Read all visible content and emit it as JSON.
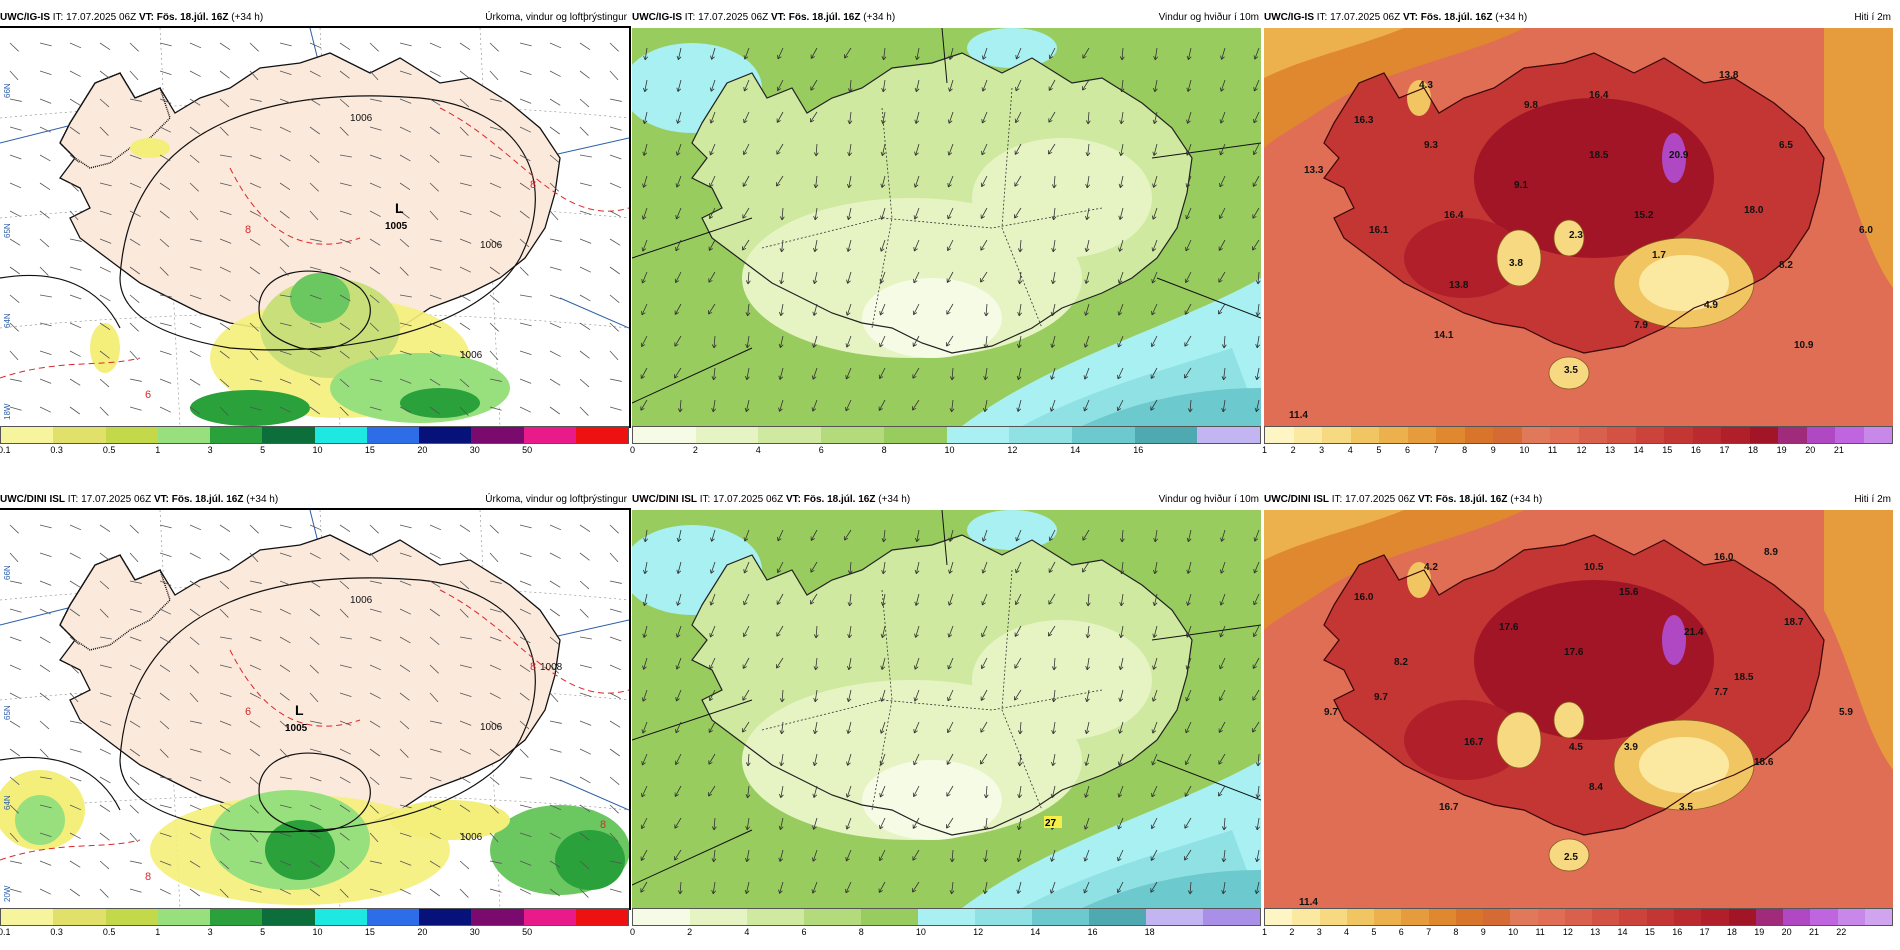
{
  "rows": [
    {
      "model": "UWC/IG-IS",
      "it_label": "IT:",
      "it": "17.07.2025 06Z",
      "vt_label": "VT:",
      "vt": "Fös. 18.júl. 16Z",
      "lead": "(+34 h)",
      "panels": [
        {
          "kind": "precip",
          "title": "Úrkoma, vindur og loftþrýstingur",
          "low_label": "L",
          "low_value": "1005",
          "isobars": [
            "1006",
            "1006",
            "1006"
          ],
          "temps": [
            "6",
            "8",
            "8"
          ],
          "lat_labels": [
            "66N",
            "65N",
            "64N",
            "18W"
          ],
          "legend": {
            "labels": [
              "0.1",
              "0.3",
              "0.5",
              "1",
              "3",
              "5",
              "10",
              "15",
              "20",
              "30",
              "50"
            ],
            "colors": [
              "#f6f49c",
              "#e0e06a",
              "#c4d94a",
              "#98e07e",
              "#2aa13a",
              "#0b6e3b",
              "#1ee8e2",
              "#2d6de8",
              "#06127a",
              "#7a0a6e",
              "#e91b8a",
              "#ee1111"
            ]
          }
        },
        {
          "kind": "wind",
          "title": "Vindur og hviður í 10m",
          "legend": {
            "labels": [
              "0",
              "2",
              "4",
              "6",
              "8",
              "10",
              "12",
              "14",
              "16"
            ],
            "colors": [
              "#f6fbe6",
              "#e6f4c4",
              "#cfe9a0",
              "#b3db7c",
              "#98cc5e",
              "#a8f0f2",
              "#8fe1e4",
              "#6cc9cd",
              "#4eaab0",
              "#c3b4f2"
            ]
          }
        },
        {
          "kind": "temp",
          "title": "Hiti í 2m",
          "values": [
            "4.3",
            "16.3",
            "9.3",
            "13.3",
            "9.8",
            "16.4",
            "13.8",
            "6.5",
            "18.5",
            "20.9",
            "9.1",
            "16.4",
            "16.1",
            "15.2",
            "18.0",
            "6.0",
            "2.3",
            "3.8",
            "1.7",
            "8.2",
            "13.8",
            "4.9",
            "7.9",
            "14.1",
            "10.9",
            "3.5",
            "11.4"
          ],
          "legend": {
            "labels": [
              "1",
              "2",
              "3",
              "4",
              "5",
              "6",
              "7",
              "8",
              "9",
              "10",
              "11",
              "12",
              "13",
              "14",
              "15",
              "16",
              "17",
              "18",
              "19",
              "20",
              "21"
            ],
            "colors": [
              "#fdf6c4",
              "#fbe9a2",
              "#f7d982",
              "#f2c563",
              "#ecb14d",
              "#e69c3c",
              "#e08830",
              "#d9752a",
              "#d56a34",
              "#e0795a",
              "#df6e55",
              "#d9604c",
              "#d35244",
              "#cc433c",
              "#c43634",
              "#bb2a2e",
              "#b01f2a",
              "#a11526",
              "#a02b7a",
              "#b048c4",
              "#c065e0",
              "#c788ea"
            ]
          }
        }
      ]
    },
    {
      "model": "UWC/DINI ISL",
      "it_label": "IT:",
      "it": "17.07.2025 06Z",
      "vt_label": "VT:",
      "vt": "Fös. 18.júl. 16Z",
      "lead": "(+34 h)",
      "panels": [
        {
          "kind": "precip",
          "title": "Úrkoma, vindur og loftþrýstingur",
          "low_label": "L",
          "low_value": "1005",
          "isobars": [
            "1006",
            "1006",
            "1006",
            "1008"
          ],
          "temps": [
            "8",
            "8",
            "6",
            "8"
          ],
          "lat_labels": [
            "66N",
            "65N",
            "64N",
            "20W"
          ],
          "legend": {
            "labels": [
              "0.1",
              "0.3",
              "0.5",
              "1",
              "3",
              "5",
              "10",
              "15",
              "20",
              "30",
              "50"
            ],
            "colors": [
              "#f6f49c",
              "#e0e06a",
              "#c4d94a",
              "#98e07e",
              "#2aa13a",
              "#0b6e3b",
              "#1ee8e2",
              "#2d6de8",
              "#06127a",
              "#7a0a6e",
              "#e91b8a",
              "#ee1111"
            ]
          }
        },
        {
          "kind": "wind",
          "title": "Vindur og hviður í 10m",
          "gust": "27",
          "legend": {
            "labels": [
              "0",
              "2",
              "4",
              "6",
              "8",
              "10",
              "12",
              "14",
              "16",
              "18"
            ],
            "colors": [
              "#f6fbe6",
              "#e6f4c4",
              "#cfe9a0",
              "#b3db7c",
              "#98cc5e",
              "#a8f0f2",
              "#8fe1e4",
              "#6cc9cd",
              "#4eaab0",
              "#c3b4f2",
              "#a98fe8"
            ]
          }
        },
        {
          "kind": "temp",
          "title": "Hiti í 2m",
          "values": [
            "4.2",
            "10.5",
            "16.0",
            "8.9",
            "16.0",
            "15.6",
            "18.7",
            "17.6",
            "21.4",
            "8.2",
            "17.6",
            "9.7",
            "7.7",
            "18.5",
            "9.7",
            "16.7",
            "4.5",
            "3.9",
            "5.9",
            "18.6",
            "8.4",
            "3.5",
            "16.7",
            "2.5",
            "11.4"
          ],
          "legend": {
            "labels": [
              "1",
              "2",
              "3",
              "4",
              "5",
              "6",
              "7",
              "8",
              "9",
              "10",
              "11",
              "12",
              "13",
              "14",
              "15",
              "16",
              "17",
              "18",
              "19",
              "20",
              "21",
              "22"
            ],
            "colors": [
              "#fdf6c4",
              "#fbe9a2",
              "#f7d982",
              "#f2c563",
              "#ecb14d",
              "#e69c3c",
              "#e08830",
              "#d9752a",
              "#d56a34",
              "#e0795a",
              "#df6e55",
              "#d9604c",
              "#d35244",
              "#cc433c",
              "#c43634",
              "#bb2a2e",
              "#b01f2a",
              "#a11526",
              "#a02b7a",
              "#b048c4",
              "#c065e0",
              "#c788ea",
              "#d0a4ee"
            ]
          }
        }
      ]
    }
  ]
}
